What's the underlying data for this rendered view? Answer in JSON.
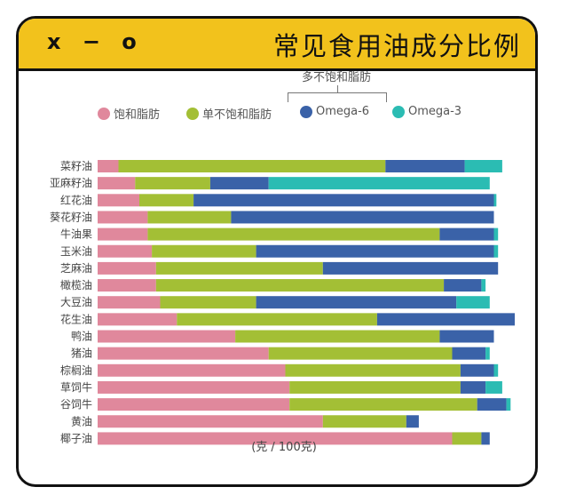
{
  "header": {
    "window_controls": "x − o",
    "title": "常见食用油成分比例"
  },
  "legend_group_label": "多不饱和脂肪",
  "chart_data": {
    "type": "bar",
    "orientation": "horizontal",
    "stacked": true,
    "title": "常见食用油成分比例",
    "xlabel": "(克 / 100克)",
    "ylabel": "",
    "grid": false,
    "legend": "top",
    "categories": [
      "菜籽油",
      "亚麻籽油",
      "红花油",
      "葵花籽油",
      "牛油果",
      "玉米油",
      "芝麻油",
      "橄榄油",
      "大豆油",
      "花生油",
      "鸭油",
      "猪油",
      "棕榈油",
      "草饲牛",
      "谷饲牛",
      "黄油",
      "椰子油"
    ],
    "series": [
      {
        "name": "饱和脂肪",
        "color": "#e0889c",
        "values": [
          5,
          9,
          10,
          12,
          12,
          13,
          14,
          14,
          15,
          19,
          33,
          41,
          45,
          46,
          46,
          54,
          85
        ]
      },
      {
        "name": "单不饱和脂肪",
        "color": "#a3bf35",
        "values": [
          64,
          18,
          13,
          20,
          70,
          25,
          40,
          69,
          23,
          48,
          49,
          44,
          42,
          41,
          45,
          20,
          7
        ]
      },
      {
        "name": "Omega-6",
        "color": "#3a62a8",
        "values": [
          19,
          14,
          72,
          63,
          13,
          57,
          42,
          9,
          48,
          33,
          13,
          8,
          8,
          6,
          7,
          3,
          2
        ]
      },
      {
        "name": "Omega-3",
        "color": "#2bbcb3",
        "values": [
          9,
          53,
          0.6,
          0,
          1,
          1,
          0,
          1,
          8,
          0,
          0,
          1,
          1,
          4,
          1,
          0,
          0
        ]
      }
    ]
  }
}
